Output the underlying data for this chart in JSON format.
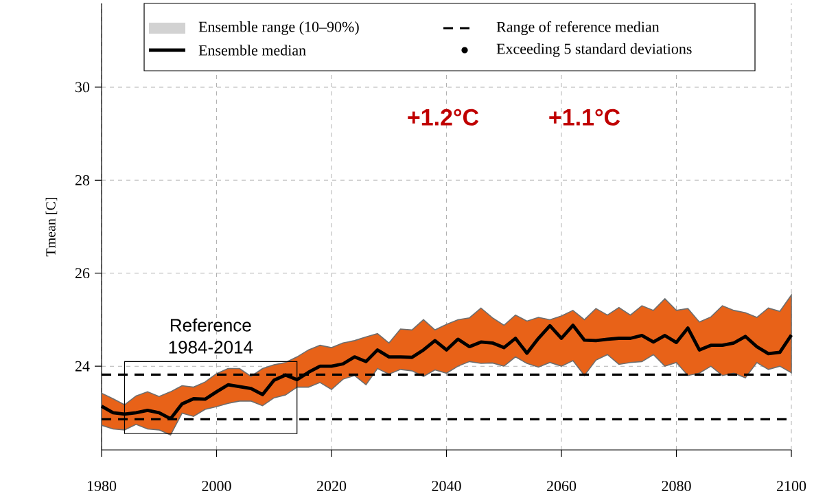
{
  "chart_data": {
    "type": "line",
    "ylabel": "Tmean [C]",
    "x": [
      1980,
      1982,
      1984,
      1986,
      1988,
      1990,
      1992,
      1994,
      1996,
      1998,
      2000,
      2002,
      2004,
      2006,
      2008,
      2010,
      2012,
      2014,
      2016,
      2018,
      2020,
      2022,
      2024,
      2026,
      2028,
      2030,
      2032,
      2034,
      2036,
      2038,
      2040,
      2042,
      2044,
      2046,
      2048,
      2050,
      2052,
      2054,
      2056,
      2058,
      2060,
      2062,
      2064,
      2066,
      2068,
      2070,
      2072,
      2074,
      2076,
      2078,
      2080,
      2082,
      2084,
      2086,
      2088,
      2090,
      2092,
      2094,
      2096,
      2098,
      2100
    ],
    "series": [
      {
        "name": "Ensemble median",
        "color": "#000000",
        "values": [
          23.14,
          23.0,
          22.97,
          23.0,
          23.05,
          23.0,
          22.87,
          23.19,
          23.3,
          23.29,
          23.45,
          23.6,
          23.56,
          23.52,
          23.39,
          23.7,
          23.81,
          23.71,
          23.87,
          24.0,
          24.0,
          24.05,
          24.2,
          24.1,
          24.35,
          24.2,
          24.2,
          24.19,
          24.35,
          24.55,
          24.35,
          24.58,
          24.42,
          24.52,
          24.5,
          24.4,
          24.6,
          24.28,
          24.6,
          24.87,
          24.6,
          24.88,
          24.56,
          24.55,
          24.58,
          24.6,
          24.6,
          24.66,
          24.52,
          24.66,
          24.51,
          24.82,
          24.35,
          24.45,
          24.45,
          24.5,
          24.64,
          24.42,
          24.27,
          24.3,
          24.67
        ],
        "lower": [
          22.73,
          22.65,
          22.63,
          22.75,
          22.65,
          22.63,
          22.52,
          22.99,
          22.92,
          23.07,
          23.13,
          23.2,
          23.25,
          23.25,
          23.15,
          23.32,
          23.38,
          23.55,
          23.55,
          23.65,
          23.5,
          23.72,
          23.8,
          23.6,
          23.95,
          23.83,
          23.93,
          23.9,
          23.78,
          23.92,
          23.85,
          24.0,
          24.1,
          24.06,
          24.07,
          24.0,
          24.2,
          24.06,
          23.98,
          24.08,
          24.0,
          24.12,
          23.8,
          24.13,
          24.25,
          24.04,
          24.08,
          24.1,
          24.25,
          24.0,
          24.08,
          23.8,
          23.85,
          24.0,
          23.8,
          23.85,
          23.75,
          24.08,
          23.93,
          24.0,
          23.86
        ],
        "upper": [
          23.42,
          23.3,
          23.17,
          23.36,
          23.45,
          23.35,
          23.45,
          23.58,
          23.55,
          23.66,
          23.84,
          23.95,
          23.95,
          23.78,
          23.95,
          24.03,
          24.08,
          24.2,
          24.35,
          24.45,
          24.4,
          24.5,
          24.55,
          24.63,
          24.7,
          24.5,
          24.8,
          24.78,
          25.0,
          24.78,
          24.9,
          25.0,
          25.04,
          25.25,
          25.04,
          24.88,
          25.1,
          24.97,
          25.05,
          25.0,
          25.08,
          25.2,
          25.0,
          25.24,
          25.1,
          25.26,
          25.1,
          25.3,
          25.2,
          25.45,
          25.2,
          25.24,
          24.95,
          25.06,
          25.3,
          25.2,
          25.15,
          25.05,
          25.25,
          25.18,
          25.53
        ]
      }
    ],
    "xlim": [
      1980,
      2100
    ],
    "ylim": [
      22.2,
      31.8
    ],
    "xticks": [
      1980,
      2000,
      2020,
      2040,
      2060,
      2080,
      2100
    ],
    "yticks": [
      24,
      26,
      28,
      30
    ],
    "grid": true,
    "legend": "top",
    "ref_lines": [
      {
        "axis": "y",
        "value": 23.82,
        "label": "Range of reference median",
        "color": "#000000",
        "line_style": "dashed"
      },
      {
        "axis": "y",
        "value": 22.86,
        "color": "#000000",
        "line_style": "dashed"
      }
    ],
    "annotations": [
      "Ensemble range (10–90%)",
      "Exceeding 5 standard deviations",
      "+1.2°C",
      "+1.1°C",
      "Reference 1984-2014"
    ]
  }
}
